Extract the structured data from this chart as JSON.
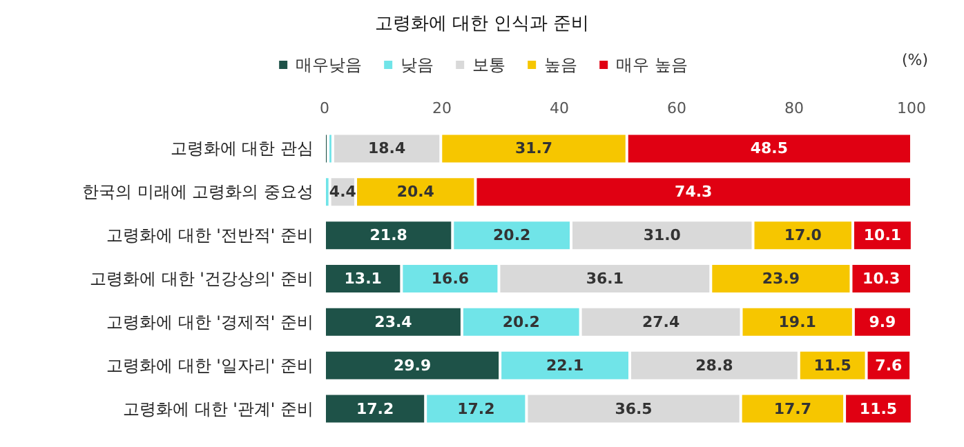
{
  "chart_data": {
    "type": "bar",
    "orientation": "horizontal",
    "stacked": true,
    "title": "고령화에 대한 인식과 준비",
    "categories": [
      "고령화에 대한 관심",
      "한국의 미래에 고령화의 중요성",
      "고령화에 대한 '전반적' 준비",
      "고령화에 대한 '건강상의' 준비",
      "고령화에 대한 '경제적' 준비",
      "고령화에 대한 '일자리' 준비",
      "고령화에 대한 '관계' 준비"
    ],
    "series": [
      {
        "name": "매우낮음",
        "color": "#1e5248",
        "values": [
          0.6,
          0,
          21.8,
          13.1,
          23.4,
          29.9,
          17.2
        ],
        "value_labels": [
          null,
          null,
          "21.8",
          "13.1",
          "23.4",
          "29.9",
          "17.2"
        ]
      },
      {
        "name": "낮음",
        "color": "#70e4e8",
        "values": [
          0.8,
          0.9,
          20.2,
          16.6,
          20.2,
          22.1,
          17.2
        ],
        "value_labels": [
          null,
          null,
          "20.2",
          "16.6",
          "20.2",
          "22.1",
          "17.2"
        ]
      },
      {
        "name": "보통",
        "color": "#d9d9d9",
        "values": [
          18.4,
          4.4,
          31.0,
          36.1,
          27.4,
          28.8,
          36.5
        ],
        "value_labels": [
          "18.4",
          "4.4",
          "31.0",
          "36.1",
          "27.4",
          "28.8",
          "36.5"
        ]
      },
      {
        "name": "높음",
        "color": "#f6c600",
        "values": [
          31.7,
          20.4,
          17.0,
          23.9,
          19.1,
          11.5,
          17.7
        ],
        "value_labels": [
          "31.7",
          "20.4",
          "17.0",
          "23.9",
          "19.1",
          "11.5",
          "17.7"
        ]
      },
      {
        "name": "매우 높음",
        "color": "#e00012",
        "values": [
          48.5,
          74.3,
          10.1,
          10.3,
          9.9,
          7.6,
          11.5
        ],
        "value_labels": [
          "48.5",
          "74.3",
          "10.1",
          "10.3",
          "9.9",
          "7.6",
          "11.5"
        ]
      }
    ],
    "xlim": [
      0,
      100
    ],
    "xticks": [
      0,
      20,
      40,
      60,
      80,
      100
    ],
    "annotations": [
      "(%)"
    ],
    "legend": "top",
    "grid": false
  }
}
